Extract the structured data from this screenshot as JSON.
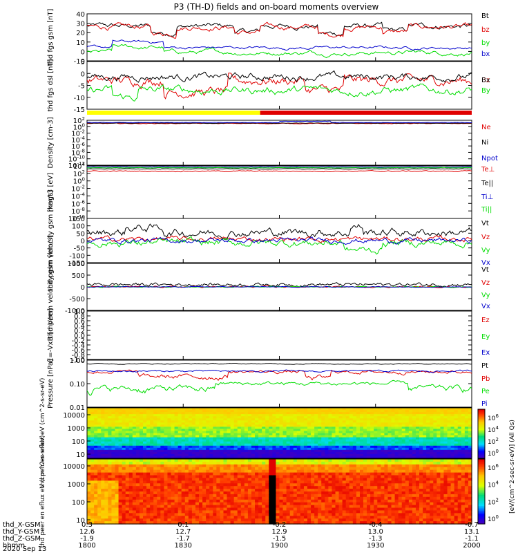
{
  "title": "P3 (TH-D) fields and on-board moments overview",
  "date": "2020 Sep 13",
  "orbit": {
    "labels": [
      "thd_X-GSM",
      "thd_Y-GSM",
      "thd_Z-GSM",
      "hhmm"
    ],
    "x": [
      "0.3",
      "0.1",
      "-0.2",
      "-0.4",
      "-0.7"
    ],
    "y": [
      "12.6",
      "12.7",
      "12.9",
      "13.0",
      "13.1"
    ],
    "z": [
      "-1.9",
      "-1.7",
      "-1.5",
      "-1.3",
      "-1.1"
    ],
    "t": [
      "1800",
      "1830",
      "1900",
      "1930",
      "2000"
    ]
  },
  "colorbar_label": "[eV/(cm^2-sec-sr-eV)] (All Qs)",
  "colorbar_ticks": [
    "10^6",
    "10^4",
    "10^2",
    "10^0"
  ],
  "status_bar": {
    "yellow_fraction": 0.45,
    "colors": [
      "#ffff00",
      "#e00000"
    ]
  },
  "chart_data": [
    {
      "type": "line",
      "ylabel": "thd fgs gsm [nT]",
      "ylim": [
        -10,
        40
      ],
      "ticks": [
        "40",
        "30",
        "20",
        "10",
        "0",
        "-10"
      ],
      "series": [
        {
          "name": "Bt",
          "color": "#000000"
        },
        {
          "name": "bz",
          "color": "#e00000"
        },
        {
          "name": "by",
          "color": "#00dd00"
        },
        {
          "name": "bx",
          "color": "#0000cc"
        }
      ]
    },
    {
      "type": "line",
      "ylabel": "thd fgs dsl [nT]",
      "ylim": [
        -15,
        10
      ],
      "ticks": [
        "5",
        "0",
        "-5",
        "-10",
        "-15"
      ],
      "series": [
        {
          "name": "Bz",
          "color": "#e00000"
        },
        {
          "name": "Bx",
          "color": "#000000"
        },
        {
          "name": "By",
          "color": "#00dd00"
        }
      ]
    },
    {
      "type": "line",
      "ylabel": "Density [cm-3]",
      "ylim": [
        -12,
        2
      ],
      "log": true,
      "ticks": [
        "10^2",
        "10^0",
        "10^-2",
        "10^-4",
        "10^-6",
        "10^-8",
        "10^-10",
        "10^-12"
      ],
      "series": [
        {
          "name": "Ne",
          "color": "#e00000"
        },
        {
          "name": "Ni",
          "color": "#000000"
        },
        {
          "name": "Npot",
          "color": "#0000cc"
        }
      ]
    },
    {
      "type": "line",
      "ylabel": "magt3 [eV]",
      "ylim": [
        -10,
        4
      ],
      "log": true,
      "ticks": [
        "10^4",
        "10^2",
        "10^0",
        "10^-2",
        "10^-4",
        "10^-6",
        "10^-8",
        "10^-10"
      ],
      "series": [
        {
          "name": "Te⊥",
          "color": "#e00000"
        },
        {
          "name": "Te||",
          "color": "#000000"
        },
        {
          "name": "Ti⊥",
          "color": "#0000cc"
        },
        {
          "name": "Ti||",
          "color": "#00dd00"
        }
      ]
    },
    {
      "type": "line",
      "ylabel": "thd peim velocity gsm [km/s]",
      "ylim": [
        -150,
        150
      ],
      "ticks": [
        "150",
        "100",
        "50",
        "0",
        "-50",
        "-100",
        "-150"
      ],
      "series": [
        {
          "name": "Vt",
          "color": "#000000"
        },
        {
          "name": "Vz",
          "color": "#e00000"
        },
        {
          "name": "Vy",
          "color": "#00dd00"
        },
        {
          "name": "Vx",
          "color": "#0000cc"
        }
      ]
    },
    {
      "type": "line",
      "ylabel": "thd peem velocity gsm [km/s]",
      "ylim": [
        -1000,
        1000
      ],
      "ticks": [
        "1000",
        "500",
        "0",
        "-500",
        "-1000"
      ],
      "series": [
        {
          "name": "Vt",
          "color": "#000000"
        },
        {
          "name": "Vz",
          "color": "#e00000"
        },
        {
          "name": "Vy",
          "color": "#00dd00"
        },
        {
          "name": "Vx",
          "color": "#0000cc"
        }
      ]
    },
    {
      "type": "line",
      "ylabel": "E=-VxB [mV/m]",
      "ylim": [
        -1,
        1
      ],
      "ticks": [
        "1.0",
        "0.8",
        "0.6",
        "0.4",
        "0.2",
        "0.0",
        "-0.2",
        "-0.4",
        "-0.6",
        "-0.8",
        "-1.0"
      ],
      "series": [
        {
          "name": "Ez",
          "color": "#e00000"
        },
        {
          "name": "Ey",
          "color": "#00dd00"
        },
        {
          "name": "Ex",
          "color": "#0000cc"
        }
      ]
    },
    {
      "type": "line",
      "ylabel": "Pressure [nPa]",
      "ylim": [
        0.01,
        1
      ],
      "log": true,
      "ticks": [
        "1.00",
        "0.10",
        "0.01"
      ],
      "series": [
        {
          "name": "Pt",
          "color": "#000000"
        },
        {
          "name": "Pb",
          "color": "#e00000"
        },
        {
          "name": "Pe",
          "color": "#00dd00"
        },
        {
          "name": "Pi",
          "color": "#0000cc"
        }
      ]
    },
    {
      "type": "heatmap",
      "ylabel": "thd peir en eflux eV (cm^2-s-sr-eV)",
      "ylim": [
        5,
        30000
      ],
      "log": true,
      "ticks": [
        "10000",
        "1000",
        "100",
        "10"
      ]
    },
    {
      "type": "heatmap",
      "ylabel": "thd peer en eflux eV (cm^2-s-sr-eV)",
      "ylim": [
        5,
        30000
      ],
      "log": true,
      "ticks": [
        "10000",
        "1000",
        "100",
        "10"
      ]
    }
  ]
}
